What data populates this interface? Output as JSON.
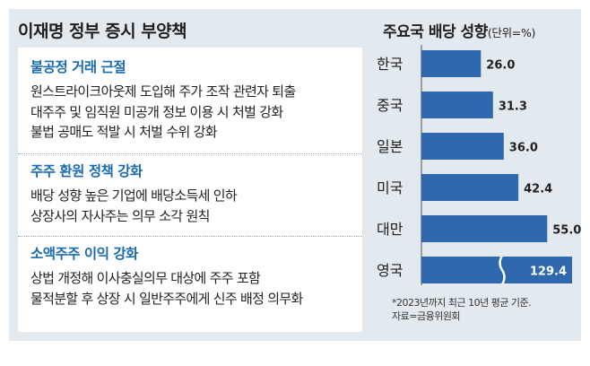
{
  "policy": {
    "title": "이재명 정부 증시 부양책",
    "sections": [
      {
        "heading": "불공정 거래 근절",
        "lines": [
          "원스트라이크아웃제 도입해 주가 조작 관련자 퇴출",
          "대주주 및 임직원 미공개 정보 이용 시 처벌 강화",
          "불법 공매도 적발 시 처벌 수위 강화"
        ]
      },
      {
        "heading": "주주 환원 정책 강화",
        "lines": [
          "배당 성향 높은 기업에 배당소득세 인하",
          "상장사의 자사주는 의무 소각 원칙"
        ]
      },
      {
        "heading": "소액주주 이익 강화",
        "lines": [
          "상법 개정해 이사충실의무 대상에 주주 포함",
          "물적분할 후 상장 시 일반주주에게 신주 배정 의무화"
        ]
      }
    ]
  },
  "chart_data": {
    "type": "bar",
    "orientation": "horizontal",
    "title": "주요국 배당 성향",
    "unit": "(단위=%)",
    "categories": [
      "한국",
      "중국",
      "일본",
      "미국",
      "대만",
      "영국"
    ],
    "values": [
      26.0,
      31.3,
      36.0,
      42.4,
      55.0,
      129.4
    ],
    "value_labels": [
      "26.0",
      "31.3",
      "36.0",
      "42.4",
      "55.0",
      "129.4"
    ],
    "axis_break": "영국",
    "bar_color": "#3068ad",
    "footnotes": [
      "*2023년까지 최근 10년 평균 기준.",
      "자료=금융위원회"
    ]
  }
}
